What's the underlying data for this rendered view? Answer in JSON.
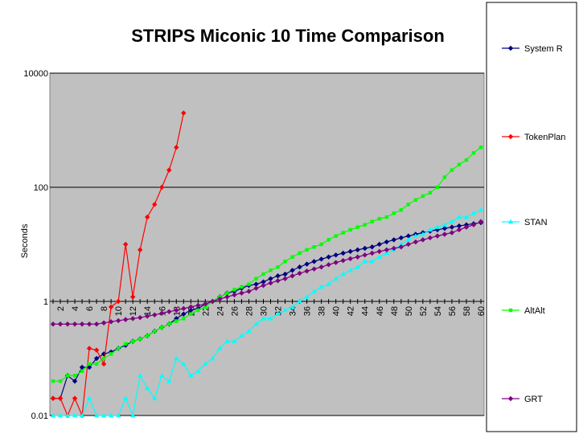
{
  "chart_data": {
    "type": "line",
    "title": "STRIPS Miconic 10 Time Comparison",
    "xlabel": "",
    "ylabel": "Seconds",
    "yscale": "log",
    "ylim": [
      0.01,
      10000
    ],
    "y_tick_labels": [
      "0.01",
      "1",
      "100",
      "10000"
    ],
    "xlim": [
      1,
      60
    ],
    "x_tick_labels": [
      "2",
      "4",
      "6",
      "8",
      "10",
      "12",
      "14",
      "16",
      "18",
      "20",
      "22",
      "24",
      "26",
      "28",
      "30",
      "32",
      "34",
      "36",
      "38",
      "40",
      "42",
      "44",
      "46",
      "48",
      "50",
      "52",
      "54",
      "56",
      "58",
      "60"
    ],
    "grid": "horizontal major lines only",
    "plot_background": "#c0c0c0",
    "legend_position": "right",
    "series": [
      {
        "name": "System R",
        "color": "#000080",
        "marker": "diamond",
        "x": [
          1,
          2,
          3,
          4,
          5,
          6,
          7,
          8,
          9,
          10,
          11,
          12,
          13,
          14,
          15,
          16,
          17,
          18,
          19,
          20,
          21,
          22,
          23,
          24,
          25,
          26,
          27,
          28,
          29,
          30,
          31,
          32,
          33,
          34,
          35,
          36,
          37,
          38,
          39,
          40,
          41,
          42,
          43,
          44,
          45,
          46,
          47,
          48,
          49,
          50,
          51,
          52,
          53,
          54,
          55,
          56,
          57,
          58,
          59,
          60
        ],
        "values": [
          0.02,
          0.02,
          0.05,
          0.04,
          0.07,
          0.07,
          0.1,
          0.12,
          0.13,
          0.15,
          0.17,
          0.2,
          0.22,
          0.25,
          0.3,
          0.35,
          0.4,
          0.5,
          0.6,
          0.7,
          0.75,
          0.9,
          1.0,
          1.2,
          1.4,
          1.5,
          1.7,
          1.9,
          2.0,
          2.2,
          2.5,
          2.8,
          3.0,
          3.5,
          4.0,
          4.5,
          5.0,
          5.5,
          6.0,
          6.5,
          7.0,
          7.5,
          8.0,
          8.5,
          9.0,
          10,
          11,
          12,
          13,
          14,
          15,
          16,
          17,
          18,
          19,
          20,
          21,
          22,
          23,
          24
        ]
      },
      {
        "name": "TokenPlan",
        "color": "#ff0000",
        "marker": "diamond",
        "x": [
          1,
          2,
          3,
          4,
          5,
          6,
          7,
          8,
          9,
          10,
          11,
          12,
          13,
          14,
          15,
          16,
          17,
          18,
          19
        ],
        "values": [
          0.02,
          0.02,
          0.01,
          0.02,
          0.01,
          0.15,
          0.14,
          0.08,
          0.8,
          1.0,
          10,
          1.2,
          8,
          30,
          50,
          100,
          200,
          500,
          2000
        ]
      },
      {
        "name": "STAN",
        "color": "#00ffff",
        "marker": "triangle",
        "x": [
          1,
          2,
          3,
          4,
          5,
          6,
          7,
          8,
          9,
          10,
          11,
          12,
          13,
          14,
          15,
          16,
          17,
          18,
          19,
          20,
          21,
          22,
          23,
          24,
          25,
          26,
          27,
          28,
          29,
          30,
          31,
          32,
          33,
          34,
          35,
          36,
          37,
          38,
          39,
          40,
          41,
          42,
          43,
          44,
          45,
          46,
          47,
          48,
          49,
          50,
          51,
          52,
          53,
          54,
          55,
          56,
          57,
          58,
          59,
          60
        ],
        "values": [
          0.01,
          0.01,
          0.01,
          0.01,
          0.01,
          0.02,
          0.01,
          0.01,
          0.01,
          0.01,
          0.02,
          0.01,
          0.05,
          0.03,
          0.02,
          0.05,
          0.04,
          0.1,
          0.08,
          0.05,
          0.06,
          0.08,
          0.1,
          0.15,
          0.2,
          0.2,
          0.25,
          0.3,
          0.4,
          0.5,
          0.5,
          0.6,
          0.7,
          0.8,
          1.0,
          1.2,
          1.5,
          1.8,
          2.0,
          2.5,
          3.0,
          3.5,
          4.0,
          5.0,
          5.0,
          6.0,
          7.0,
          8.0,
          10,
          12,
          14,
          15,
          18,
          20,
          22,
          25,
          30,
          30,
          35,
          40
        ]
      },
      {
        "name": "AltAlt",
        "color": "#00ff00",
        "marker": "square",
        "x": [
          1,
          2,
          3,
          4,
          5,
          6,
          7,
          8,
          9,
          10,
          11,
          12,
          13,
          14,
          15,
          16,
          17,
          18,
          19,
          20,
          21,
          22,
          23,
          24,
          25,
          26,
          27,
          28,
          29,
          30,
          31,
          32,
          33,
          34,
          35,
          36,
          37,
          38,
          39,
          40,
          41,
          42,
          43,
          44,
          45,
          46,
          47,
          48,
          49,
          50,
          51,
          52,
          53,
          54,
          55,
          56,
          57,
          58,
          59,
          60
        ],
        "values": [
          0.04,
          0.04,
          0.05,
          0.05,
          0.06,
          0.08,
          0.08,
          0.1,
          0.12,
          0.15,
          0.18,
          0.2,
          0.22,
          0.25,
          0.3,
          0.35,
          0.4,
          0.45,
          0.5,
          0.6,
          0.7,
          0.8,
          1.0,
          1.2,
          1.4,
          1.6,
          1.8,
          2.0,
          2.5,
          3.0,
          3.5,
          4.0,
          5.0,
          6.0,
          7.0,
          8.0,
          9.0,
          10,
          12,
          14,
          16,
          18,
          20,
          22,
          25,
          28,
          30,
          35,
          40,
          50,
          60,
          70,
          80,
          100,
          150,
          200,
          250,
          300,
          400,
          500
        ]
      },
      {
        "name": "GRT",
        "color": "#800080",
        "marker": "diamond",
        "x": [
          1,
          2,
          3,
          4,
          5,
          6,
          7,
          8,
          9,
          10,
          11,
          12,
          13,
          14,
          15,
          16,
          17,
          18,
          19,
          20,
          21,
          22,
          23,
          24,
          25,
          26,
          27,
          28,
          29,
          30,
          31,
          32,
          33,
          34,
          35,
          36,
          37,
          38,
          39,
          40,
          41,
          42,
          43,
          44,
          45,
          46,
          47,
          48,
          49,
          50,
          51,
          52,
          53,
          54,
          55,
          56,
          57,
          58,
          59,
          60
        ],
        "values": [
          0.4,
          0.4,
          0.4,
          0.4,
          0.4,
          0.4,
          0.4,
          0.42,
          0.44,
          0.46,
          0.48,
          0.5,
          0.52,
          0.55,
          0.58,
          0.62,
          0.66,
          0.7,
          0.75,
          0.8,
          0.85,
          0.9,
          1.0,
          1.1,
          1.2,
          1.3,
          1.4,
          1.5,
          1.7,
          1.9,
          2.1,
          2.3,
          2.5,
          2.8,
          3.1,
          3.4,
          3.7,
          4.0,
          4.4,
          4.8,
          5.2,
          5.6,
          6.0,
          6.5,
          7.0,
          7.5,
          8.0,
          8.5,
          9.0,
          10,
          11,
          12,
          13,
          14,
          15,
          16,
          18,
          20,
          22,
          25
        ]
      }
    ]
  }
}
